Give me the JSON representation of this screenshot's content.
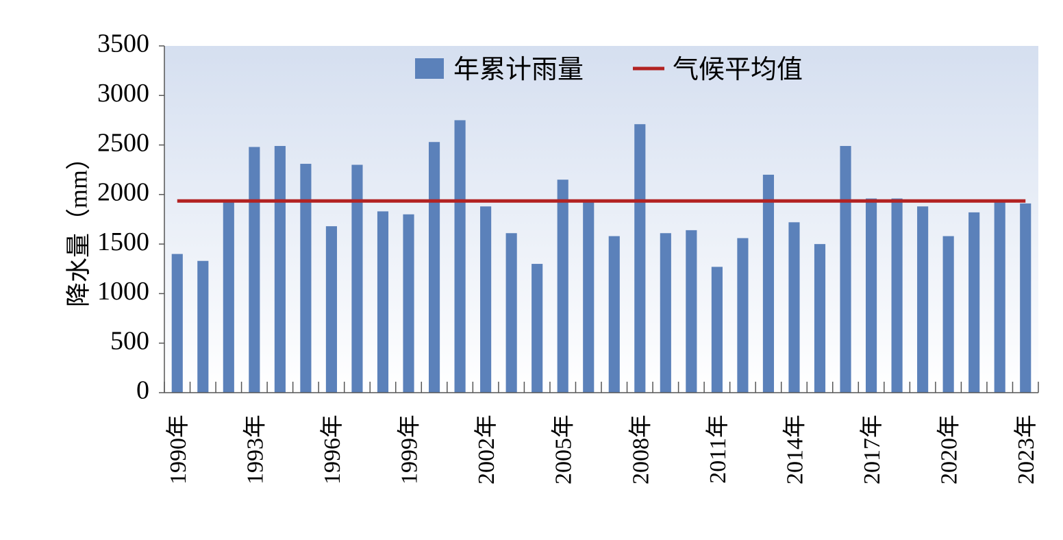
{
  "chart_data": {
    "type": "bar",
    "xlabel": "",
    "ylabel": "降水量（mm）",
    "ylim": [
      0,
      3500
    ],
    "ytick_step": 500,
    "yticks": [
      "0",
      "500",
      "1000",
      "1500",
      "2000",
      "2500",
      "3000",
      "3500"
    ],
    "grid": false,
    "legend_position": "top-center",
    "categories": [
      "1990年",
      "1991年",
      "1992年",
      "1993年",
      "1994年",
      "1995年",
      "1996年",
      "1997年",
      "1998年",
      "1999年",
      "2000年",
      "2001年",
      "2002年",
      "2003年",
      "2004年",
      "2005年",
      "2006年",
      "2007年",
      "2008年",
      "2009年",
      "2010年",
      "2011年",
      "2012年",
      "2013年",
      "2014年",
      "2015年",
      "2016年",
      "2017年",
      "2018年",
      "2019年",
      "2020年",
      "2021年",
      "2022年",
      "2023年"
    ],
    "visible_x_labels": [
      "1990年",
      "1993年",
      "1996年",
      "1999年",
      "2002年",
      "2005年",
      "2008年",
      "2011年",
      "2014年",
      "2017年",
      "2020年",
      "2023年"
    ],
    "series": [
      {
        "name": "年累计雨量",
        "type": "bar",
        "color": "#5b81ba",
        "values": [
          1400,
          1330,
          1950,
          2480,
          2490,
          2310,
          1680,
          2300,
          1830,
          1800,
          2530,
          2750,
          1880,
          1610,
          1300,
          2150,
          1940,
          1580,
          2710,
          1610,
          1640,
          1270,
          1560,
          2200,
          1720,
          1500,
          2490,
          1960,
          1960,
          1880,
          1580,
          1820,
          1950,
          1910
        ]
      },
      {
        "name": "气候平均值",
        "type": "line",
        "color": "#b22222",
        "value": 1935
      }
    ],
    "background_gradient": [
      "#d5dff0",
      "#ffffff"
    ]
  }
}
